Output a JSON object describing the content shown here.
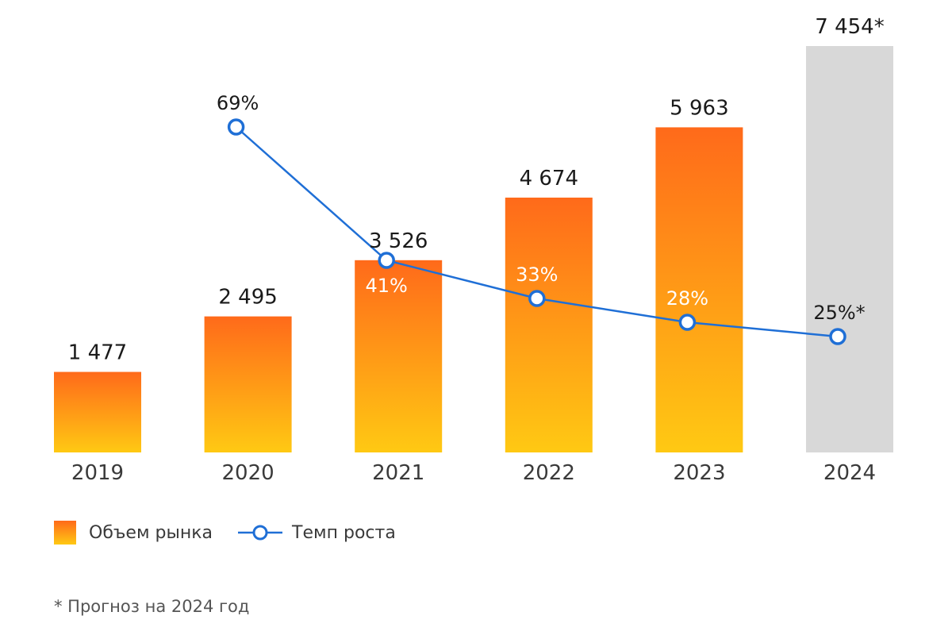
{
  "chart_data": {
    "type": "bar",
    "categories": [
      "2019",
      "2020",
      "2021",
      "2022",
      "2023",
      "2024"
    ],
    "series": [
      {
        "name": "Объем рынка",
        "values": [
          1477,
          2495,
          3526,
          4674,
          5963,
          7454
        ],
        "labels": [
          "1 477",
          "2 495",
          "3 526",
          "4 674",
          "5 963",
          "7 454*"
        ]
      },
      {
        "name": "Темп роста",
        "type": "line",
        "values": [
          null,
          69,
          41,
          33,
          28,
          25
        ],
        "labels": [
          "",
          "69%",
          "41%",
          "33%",
          "28%",
          "25%*"
        ]
      }
    ],
    "forecast_index": 5,
    "legend_position": "bottom-left",
    "colors": {
      "bar_top": "#ff6a1a",
      "bar_bottom": "#ffc913",
      "forecast_bar": "#d8d8d8",
      "line": "#1f6fd6"
    }
  },
  "legend": {
    "market_volume": "Объем рынка",
    "growth_rate": "Темп роста"
  },
  "footnote": "* Прогноз на 2024 год"
}
